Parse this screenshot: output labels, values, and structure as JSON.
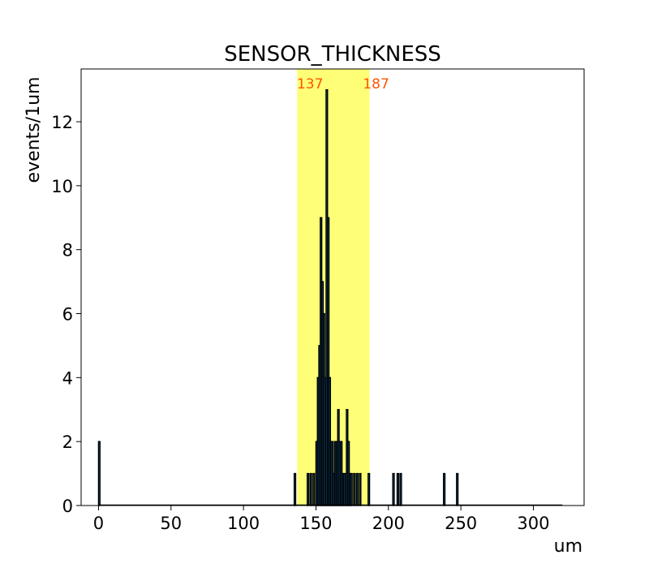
{
  "chart_data": {
    "type": "bar",
    "title": "SENSOR_THICKNESS",
    "xlabel": "um",
    "ylabel": "events/1um",
    "xlim": [
      -12,
      335
    ],
    "ylim": [
      0,
      13.65
    ],
    "xticks": [
      0,
      50,
      100,
      150,
      200,
      250,
      300
    ],
    "yticks": [
      0,
      2,
      4,
      6,
      8,
      10,
      12
    ],
    "bin_width": 1,
    "x_range_drawn": [
      0,
      320
    ],
    "bins": [
      {
        "x": 0,
        "count": 2
      },
      {
        "x": 135,
        "count": 1
      },
      {
        "x": 144,
        "count": 1
      },
      {
        "x": 146,
        "count": 1
      },
      {
        "x": 148,
        "count": 1
      },
      {
        "x": 150,
        "count": 2
      },
      {
        "x": 151,
        "count": 4
      },
      {
        "x": 152,
        "count": 5
      },
      {
        "x": 153,
        "count": 9
      },
      {
        "x": 154,
        "count": 7
      },
      {
        "x": 155,
        "count": 6
      },
      {
        "x": 156,
        "count": 4
      },
      {
        "x": 157,
        "count": 13
      },
      {
        "x": 158,
        "count": 9
      },
      {
        "x": 159,
        "count": 4
      },
      {
        "x": 160,
        "count": 2
      },
      {
        "x": 161,
        "count": 2
      },
      {
        "x": 162,
        "count": 1
      },
      {
        "x": 163,
        "count": 2
      },
      {
        "x": 164,
        "count": 2
      },
      {
        "x": 165,
        "count": 3
      },
      {
        "x": 166,
        "count": 2
      },
      {
        "x": 167,
        "count": 2
      },
      {
        "x": 168,
        "count": 1
      },
      {
        "x": 169,
        "count": 1
      },
      {
        "x": 170,
        "count": 1
      },
      {
        "x": 171,
        "count": 3
      },
      {
        "x": 172,
        "count": 2
      },
      {
        "x": 173,
        "count": 1
      },
      {
        "x": 174,
        "count": 1
      },
      {
        "x": 176,
        "count": 1
      },
      {
        "x": 178,
        "count": 1
      },
      {
        "x": 180,
        "count": 1
      },
      {
        "x": 186,
        "count": 1
      },
      {
        "x": 203,
        "count": 1
      },
      {
        "x": 206,
        "count": 1
      },
      {
        "x": 208,
        "count": 1
      },
      {
        "x": 238,
        "count": 1
      },
      {
        "x": 247,
        "count": 1
      }
    ],
    "highlight_band": {
      "from": 137,
      "to": 187,
      "color": "#ffff77",
      "label_color": "#ff5500",
      "low_label": "137",
      "high_label": "187"
    },
    "bar_fill": "#1f77b4",
    "bar_edge": "#000000",
    "grid": false,
    "legend": "none"
  }
}
